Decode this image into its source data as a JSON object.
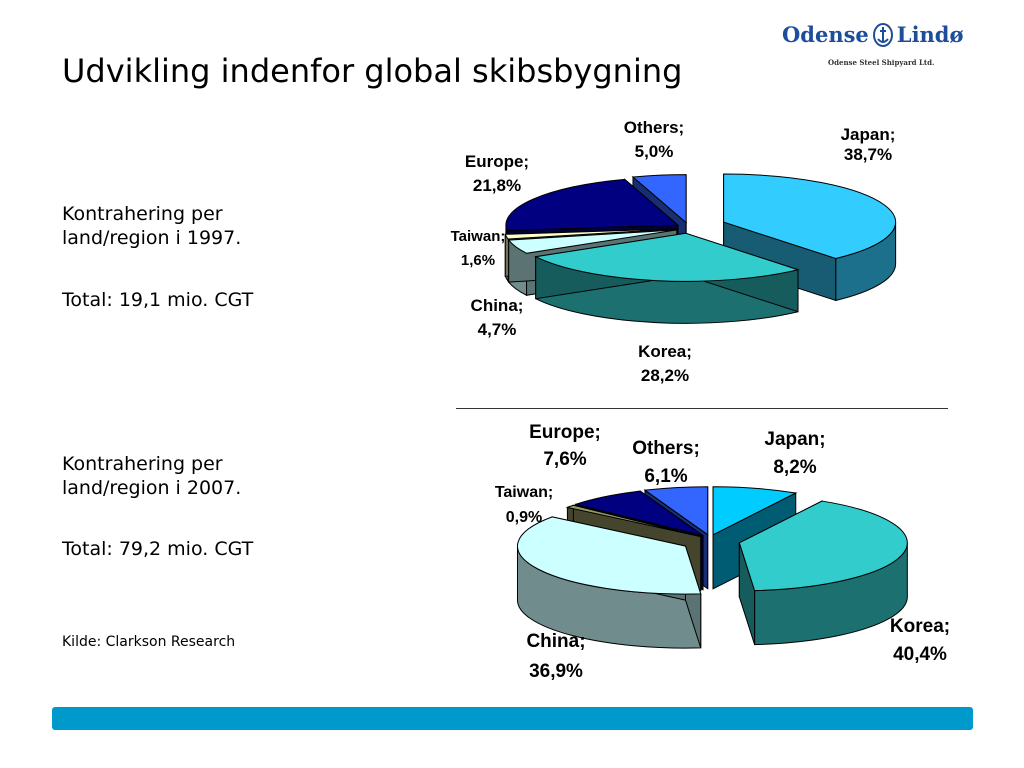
{
  "slide": {
    "title": "Udvikling indenfor global skibsbygning",
    "logo_text_left": "Odense",
    "logo_text_right": "Lindø",
    "logo_subtitle": "Odense Steel Shipyard Ltd.",
    "block1_line1": "Kontrahering per",
    "block1_line2": "land/region i 1997.",
    "block1_total": "Total: 19,1 mio. CGT",
    "block2_line1": "Kontrahering per",
    "block2_line2": "land/region i 2007.",
    "block2_total": "Total: 79,2 mio. CGT",
    "source": "Kilde: Clarkson Research",
    "colors": {
      "brand_blue": "#1e4e9a",
      "footer_bar": "#0099cc"
    }
  },
  "chart_data": [
    {
      "type": "pie",
      "title": "",
      "slices": [
        {
          "label": "Japan",
          "value": 38.7,
          "display": "38,7%",
          "color": "#33ccff"
        },
        {
          "label": "Korea",
          "value": 28.2,
          "display": "28,2%",
          "color": "#33cccc"
        },
        {
          "label": "China",
          "value": 4.7,
          "display": "4,7%",
          "color": "#ccffff"
        },
        {
          "label": "Taiwan",
          "value": 1.6,
          "display": "1,6%",
          "color": "#ffffcc"
        },
        {
          "label": "Europe",
          "value": 21.8,
          "display": "21,8%",
          "color": "#000080"
        },
        {
          "label": "Others",
          "value": 5.0,
          "display": "5,0%",
          "color": "#3366ff"
        }
      ]
    },
    {
      "type": "pie",
      "title": "",
      "slices": [
        {
          "label": "Japan",
          "value": 8.2,
          "display": "8,2%",
          "color": "#00ccff"
        },
        {
          "label": "Korea",
          "value": 40.4,
          "display": "40,4%",
          "color": "#33cccc"
        },
        {
          "label": "China",
          "value": 36.9,
          "display": "36,9%",
          "color": "#ccffff"
        },
        {
          "label": "Taiwan",
          "value": 0.9,
          "display": "0,9%",
          "color": "#999966"
        },
        {
          "label": "Europe",
          "value": 7.6,
          "display": "7,6%",
          "color": "#000080"
        },
        {
          "label": "Others",
          "value": 6.1,
          "display": "6,1%",
          "color": "#3366ff"
        }
      ]
    }
  ]
}
